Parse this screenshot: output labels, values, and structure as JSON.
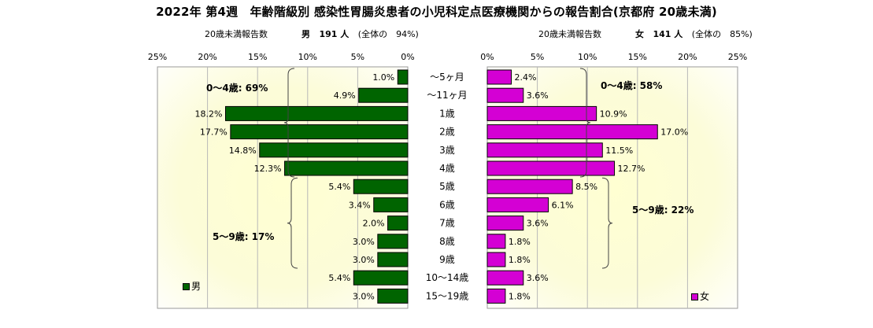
{
  "title": "2022年 第4週　年齢階級別 感染性胃腸炎患者の小児科定点医療機関からの報告割合(京都府 20歳未満)",
  "subtitles": {
    "male": {
      "label": "20歳未満報告数",
      "sex": "男",
      "count": "191 人",
      "share": "(全体の　94%)"
    },
    "female": {
      "label": "20歳未満報告数",
      "sex": "女",
      "count": "141 人",
      "share": "(全体の　85%)"
    }
  },
  "chart_data": {
    "type": "bar",
    "orientation": "horizontal-butterfly",
    "categories": [
      "～5ヶ月",
      "～11ヶ月",
      "1歳",
      "2歳",
      "3歳",
      "4歳",
      "5歳",
      "6歳",
      "7歳",
      "8歳",
      "9歳",
      "10～14歳",
      "15～19歳"
    ],
    "series": [
      {
        "name": "男",
        "color": "#006400",
        "values": [
          1.0,
          4.9,
          18.2,
          17.7,
          14.8,
          12.3,
          5.4,
          3.4,
          2.0,
          3.0,
          3.0,
          5.4,
          3.0
        ]
      },
      {
        "name": "女",
        "color": "#d400d4",
        "values": [
          2.4,
          3.6,
          10.9,
          17.0,
          11.5,
          12.7,
          8.5,
          6.1,
          3.6,
          1.8,
          1.8,
          3.6,
          1.8
        ]
      }
    ],
    "xlim": [
      0,
      25
    ],
    "ticks": [
      "25%",
      "20%",
      "15%",
      "10%",
      "5%",
      "0%"
    ],
    "ticks_right": [
      "0%",
      "5%",
      "10%",
      "15%",
      "20%",
      "25%"
    ],
    "grid": true,
    "annotations": {
      "male_0_4": "0～4歳: 69%",
      "male_5_9": "5～9歳: 17%",
      "female_0_4": "0～4歳: 58%",
      "female_5_9": "5～9歳: 22%"
    }
  },
  "legend": {
    "male": "男",
    "female": "女"
  }
}
